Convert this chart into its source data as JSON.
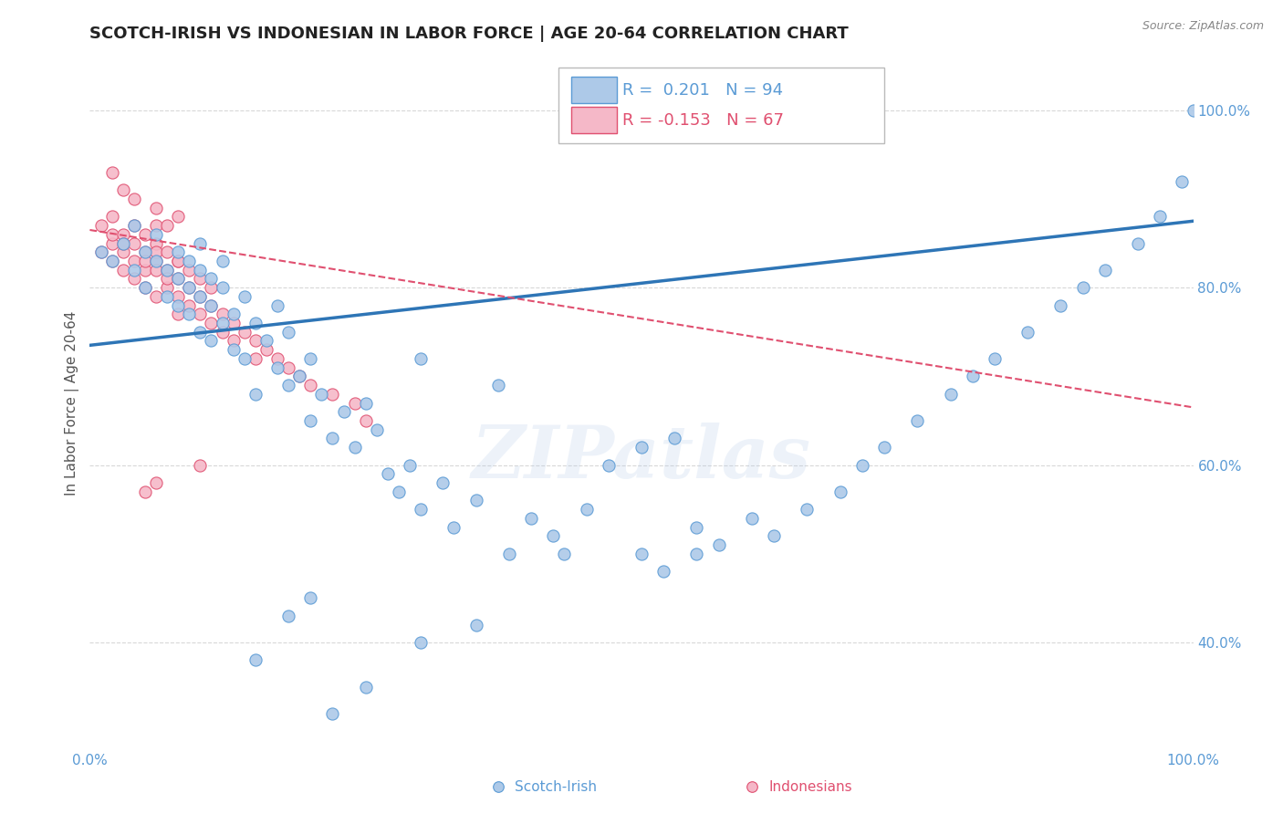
{
  "title": "SCOTCH-IRISH VS INDONESIAN IN LABOR FORCE | AGE 20-64 CORRELATION CHART",
  "source": "Source: ZipAtlas.com",
  "ylabel": "In Labor Force | Age 20-64",
  "xlim": [
    0.0,
    1.0
  ],
  "ylim": [
    0.28,
    1.06
  ],
  "title_fontsize": 13,
  "axis_label_color": "#5b9bd5",
  "watermark": "ZIPatlas",
  "legend_R_blue": "0.201",
  "legend_N_blue": "94",
  "legend_R_pink": "-0.153",
  "legend_N_pink": "67",
  "blue_scatter": {
    "x": [
      0.01,
      0.02,
      0.03,
      0.04,
      0.04,
      0.05,
      0.05,
      0.06,
      0.06,
      0.07,
      0.07,
      0.08,
      0.08,
      0.08,
      0.09,
      0.09,
      0.09,
      0.1,
      0.1,
      0.1,
      0.1,
      0.11,
      0.11,
      0.11,
      0.12,
      0.12,
      0.12,
      0.13,
      0.13,
      0.14,
      0.14,
      0.15,
      0.15,
      0.16,
      0.17,
      0.17,
      0.18,
      0.18,
      0.19,
      0.2,
      0.2,
      0.21,
      0.22,
      0.23,
      0.24,
      0.25,
      0.26,
      0.27,
      0.28,
      0.29,
      0.3,
      0.3,
      0.32,
      0.33,
      0.35,
      0.35,
      0.37,
      0.38,
      0.4,
      0.42,
      0.43,
      0.45,
      0.47,
      0.5,
      0.52,
      0.53,
      0.55,
      0.55,
      0.57,
      0.6,
      0.62,
      0.65,
      0.68,
      0.7,
      0.72,
      0.75,
      0.78,
      0.8,
      0.82,
      0.85,
      0.88,
      0.9,
      0.92,
      0.95,
      0.97,
      0.99,
      1.0,
      0.3,
      0.25,
      0.22,
      0.2,
      0.18,
      0.15,
      0.5
    ],
    "y": [
      0.84,
      0.83,
      0.85,
      0.82,
      0.87,
      0.8,
      0.84,
      0.83,
      0.86,
      0.82,
      0.79,
      0.81,
      0.78,
      0.84,
      0.8,
      0.77,
      0.83,
      0.79,
      0.75,
      0.82,
      0.85,
      0.78,
      0.81,
      0.74,
      0.8,
      0.76,
      0.83,
      0.77,
      0.73,
      0.79,
      0.72,
      0.76,
      0.68,
      0.74,
      0.71,
      0.78,
      0.69,
      0.75,
      0.7,
      0.65,
      0.72,
      0.68,
      0.63,
      0.66,
      0.62,
      0.67,
      0.64,
      0.59,
      0.57,
      0.6,
      0.55,
      0.72,
      0.58,
      0.53,
      0.56,
      0.42,
      0.69,
      0.5,
      0.54,
      0.52,
      0.5,
      0.55,
      0.6,
      0.5,
      0.48,
      0.63,
      0.5,
      0.53,
      0.51,
      0.54,
      0.52,
      0.55,
      0.57,
      0.6,
      0.62,
      0.65,
      0.68,
      0.7,
      0.72,
      0.75,
      0.78,
      0.8,
      0.82,
      0.85,
      0.88,
      0.92,
      1.0,
      0.4,
      0.35,
      0.32,
      0.45,
      0.43,
      0.38,
      0.62
    ],
    "color": "#adc9e8",
    "edge_color": "#5b9bd5",
    "size": 90
  },
  "pink_scatter": {
    "x": [
      0.01,
      0.01,
      0.02,
      0.02,
      0.02,
      0.02,
      0.03,
      0.03,
      0.03,
      0.03,
      0.04,
      0.04,
      0.04,
      0.04,
      0.05,
      0.05,
      0.05,
      0.05,
      0.05,
      0.06,
      0.06,
      0.06,
      0.06,
      0.06,
      0.06,
      0.07,
      0.07,
      0.07,
      0.07,
      0.08,
      0.08,
      0.08,
      0.08,
      0.08,
      0.09,
      0.09,
      0.09,
      0.1,
      0.1,
      0.1,
      0.11,
      0.11,
      0.11,
      0.12,
      0.12,
      0.13,
      0.13,
      0.14,
      0.15,
      0.15,
      0.16,
      0.17,
      0.18,
      0.19,
      0.2,
      0.22,
      0.24,
      0.25,
      0.1,
      0.06,
      0.05,
      0.03,
      0.02,
      0.08,
      0.07,
      0.06,
      0.04
    ],
    "y": [
      0.84,
      0.87,
      0.85,
      0.86,
      0.83,
      0.88,
      0.84,
      0.86,
      0.82,
      0.85,
      0.83,
      0.85,
      0.87,
      0.81,
      0.84,
      0.82,
      0.86,
      0.83,
      0.8,
      0.83,
      0.85,
      0.82,
      0.79,
      0.84,
      0.87,
      0.82,
      0.8,
      0.84,
      0.81,
      0.83,
      0.81,
      0.79,
      0.77,
      0.83,
      0.8,
      0.78,
      0.82,
      0.79,
      0.77,
      0.81,
      0.78,
      0.76,
      0.8,
      0.77,
      0.75,
      0.76,
      0.74,
      0.75,
      0.74,
      0.72,
      0.73,
      0.72,
      0.71,
      0.7,
      0.69,
      0.68,
      0.67,
      0.65,
      0.6,
      0.58,
      0.57,
      0.91,
      0.93,
      0.88,
      0.87,
      0.89,
      0.9
    ],
    "color": "#f5b8c8",
    "edge_color": "#e05070",
    "size": 90
  },
  "blue_line": {
    "x0": 0.0,
    "x1": 1.0,
    "y0": 0.735,
    "y1": 0.875,
    "color": "#2e75b6",
    "linewidth": 2.5
  },
  "pink_line": {
    "x0": 0.0,
    "x1": 1.0,
    "y0": 0.865,
    "y1": 0.665,
    "color": "#e05070",
    "linewidth": 1.5,
    "linestyle": "--"
  },
  "background_color": "#ffffff",
  "grid_color": "#d8d8d8",
  "y_tick_positions": [
    0.4,
    0.6,
    0.8,
    1.0
  ],
  "y_tick_labels": [
    "40.0%",
    "60.0%",
    "80.0%",
    "100.0%"
  ]
}
